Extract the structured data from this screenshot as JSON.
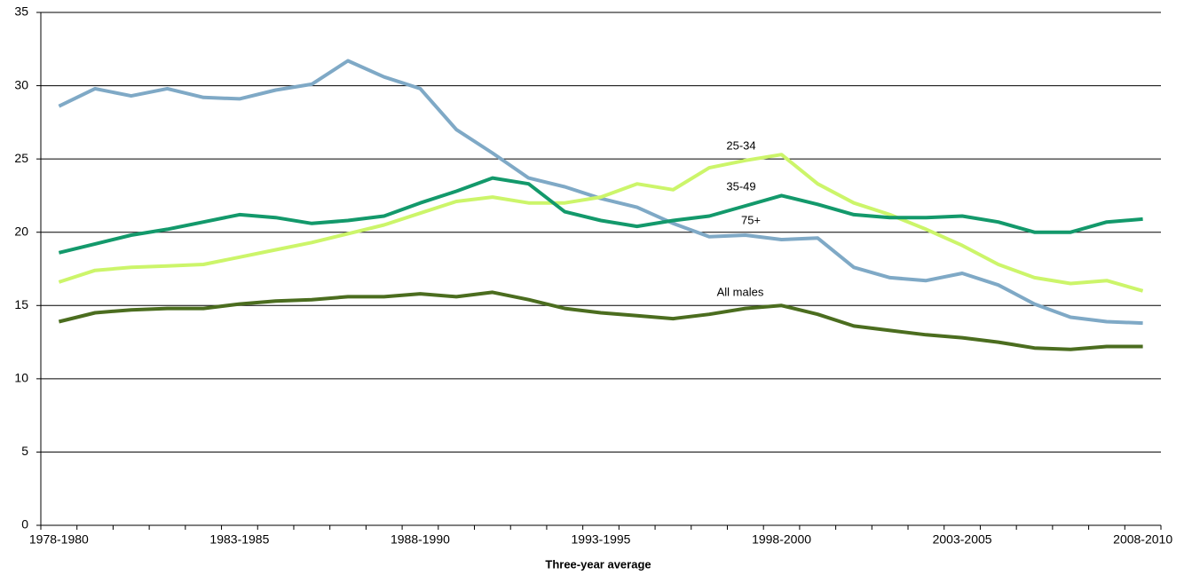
{
  "chart_data": {
    "type": "line",
    "x_label": "Three-year average",
    "categories": [
      "1978-1980",
      null,
      null,
      null,
      null,
      "1983-1985",
      null,
      null,
      null,
      null,
      "1988-1990",
      null,
      null,
      null,
      null,
      "1993-1995",
      null,
      null,
      null,
      null,
      "1998-2000",
      null,
      null,
      null,
      null,
      "2003-2005",
      null,
      null,
      null,
      null,
      "2008-2010"
    ],
    "ylim": [
      0,
      35
    ],
    "yticks": [
      0,
      5,
      10,
      15,
      20,
      25,
      30,
      35
    ],
    "grid": true,
    "series": [
      {
        "name": "75+",
        "color": "#7fa9c6",
        "values": [
          28.6,
          29.8,
          29.3,
          29.8,
          29.2,
          29.1,
          29.7,
          30.1,
          31.7,
          30.6,
          29.8,
          27.0,
          25.4,
          23.7,
          23.1,
          22.3,
          21.7,
          20.6,
          19.7,
          19.8,
          19.5,
          19.6,
          17.6,
          16.9,
          16.7,
          17.2,
          16.4,
          15.1,
          14.2,
          13.9,
          13.8
        ]
      },
      {
        "name": "25-34",
        "color": "#ccf56a",
        "values": [
          16.6,
          17.4,
          17.6,
          17.7,
          17.8,
          18.3,
          18.8,
          19.3,
          19.9,
          20.5,
          21.3,
          22.1,
          22.4,
          22.0,
          22.0,
          22.4,
          23.3,
          22.9,
          24.4,
          24.9,
          25.3,
          23.3,
          22.0,
          21.2,
          20.2,
          19.1,
          17.8,
          16.9,
          16.5,
          16.7,
          16.0
        ]
      },
      {
        "name": "35-49",
        "color": "#13996b",
        "values": [
          18.6,
          19.2,
          19.8,
          20.2,
          20.7,
          21.2,
          21.0,
          20.6,
          20.8,
          21.1,
          22.0,
          22.8,
          23.7,
          23.3,
          21.4,
          20.8,
          20.4,
          20.8,
          21.1,
          21.8,
          22.5,
          21.9,
          21.2,
          21.0,
          21.0,
          21.1,
          20.7,
          20.0,
          20.0,
          20.7,
          20.9
        ]
      },
      {
        "name": "All males",
        "color": "#4b6d1f",
        "values": [
          13.9,
          14.5,
          14.7,
          14.8,
          14.8,
          15.1,
          15.3,
          15.4,
          15.6,
          15.6,
          15.8,
          15.6,
          15.9,
          15.4,
          14.8,
          14.5,
          14.3,
          14.1,
          14.4,
          14.8,
          15.0,
          14.4,
          13.6,
          13.3,
          13.0,
          12.8,
          12.5,
          12.1,
          12.0,
          12.2,
          12.2
        ]
      }
    ]
  }
}
